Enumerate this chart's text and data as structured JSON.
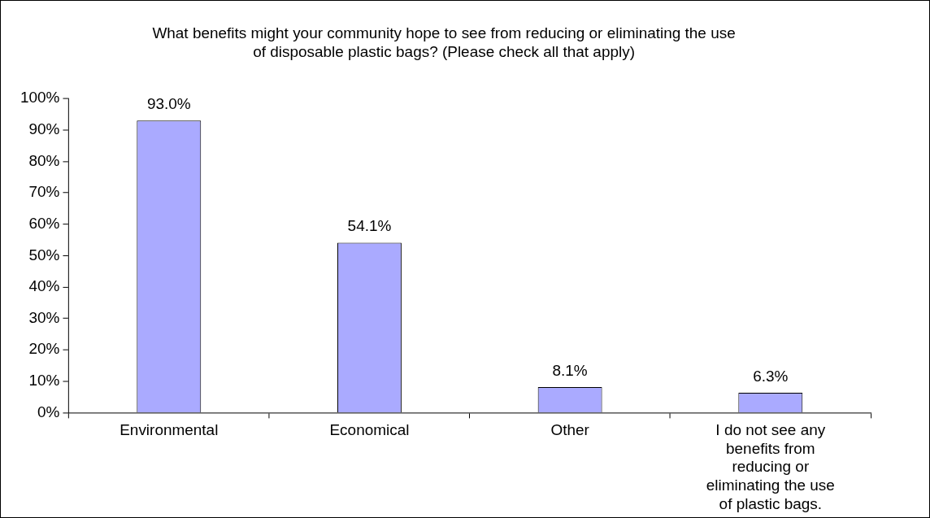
{
  "chart_data": {
    "type": "bar",
    "title": "What benefits might your community hope to see from reducing or eliminating the use of disposable plastic bags? (Please check all that apply)",
    "categories": [
      "Environmental",
      "Economical",
      "Other",
      "I do not see any benefits from reducing or eliminating the use of plastic bags."
    ],
    "values": [
      93.0,
      54.1,
      8.1,
      6.3
    ],
    "value_labels": [
      "93.0%",
      "54.1%",
      "8.1%",
      "6.3%"
    ],
    "color": "#aaaaff",
    "ylim": [
      0,
      100
    ],
    "yticks": [
      {
        "value": 0,
        "label": "0%"
      },
      {
        "value": 10,
        "label": "10%"
      },
      {
        "value": 20,
        "label": "20%"
      },
      {
        "value": 30,
        "label": "30%"
      },
      {
        "value": 40,
        "label": "40%"
      },
      {
        "value": 50,
        "label": "50%"
      },
      {
        "value": 60,
        "label": "60%"
      },
      {
        "value": 70,
        "label": "70%"
      },
      {
        "value": 80,
        "label": "80%"
      },
      {
        "value": 90,
        "label": "90%"
      },
      {
        "value": 100,
        "label": "100%"
      }
    ],
    "grid": false,
    "legend": false
  }
}
